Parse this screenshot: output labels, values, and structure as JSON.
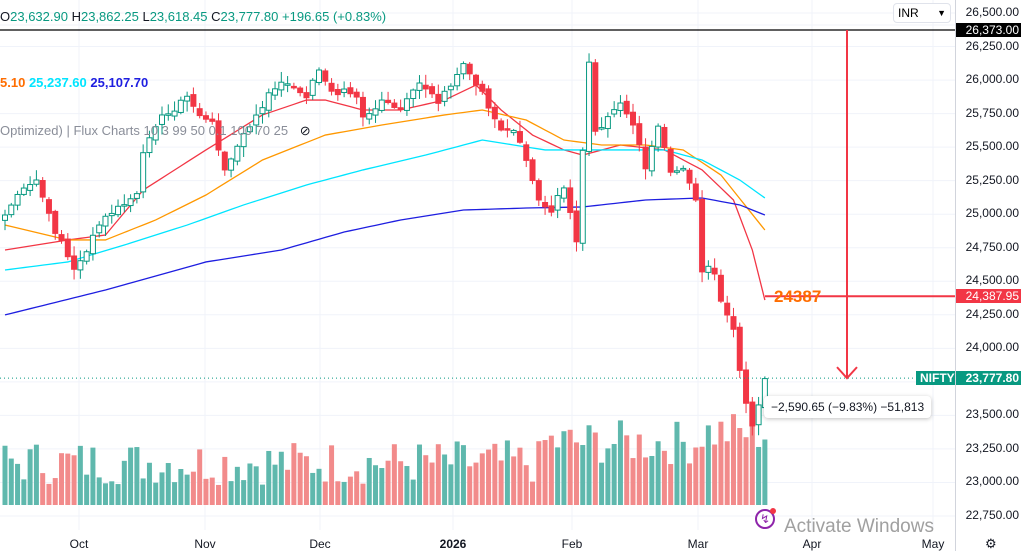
{
  "header": {
    "open_label": "O",
    "open": "23,632.90",
    "high_label": "H",
    "high": "23,862.25",
    "low_label": "L",
    "low": "23,618.45",
    "close_label": "C",
    "close": "23,777.80",
    "change": "+196.65 (+0.83%)"
  },
  "ma_legend": [
    {
      "value": "5.10",
      "color": "#ff6d00"
    },
    {
      "value": "25,237.60",
      "color": "#00e5ff"
    },
    {
      "value": "25,107.70",
      "color": "#1e1ee0"
    }
  ],
  "indicator_legend": "Optimized) | Flux Charts 10 3 99 50 0.1 100 70 25",
  "currency": {
    "label": "INR",
    "icon": "chevron-down-icon"
  },
  "price_axis": {
    "ticks": [
      "26,500.00",
      "26,250.00",
      "26,000.00",
      "25,750.00",
      "25,500.00",
      "25,250.00",
      "25,000.00",
      "24,750.00",
      "24,500.00",
      "24,250.00",
      "24,000.00",
      "23,500.00",
      "23,250.00",
      "23,000.00",
      "22,750.00"
    ],
    "high_tag": "26,373.00",
    "target_tag": "24,387.95",
    "last_tag": "23,777.80",
    "symbol": "NIFTY"
  },
  "time_axis": [
    "Oct",
    "Nov",
    "Dec",
    "2026",
    "Feb",
    "Mar",
    "Apr",
    "May"
  ],
  "annotations": {
    "target_label": "24387",
    "measure": "−2,590.65 (−9.83%) −51,813"
  },
  "watermark": "Activate Windows",
  "colors": {
    "up": "#089981",
    "down": "#f23645",
    "vol_up": "#5fb8ad",
    "vol_down": "#f28b8b"
  },
  "chart_data": {
    "type": "candlestick",
    "symbol": "NIFTY",
    "ylim": [
      22700,
      26560
    ],
    "bars": 122,
    "close_keypoints": [
      [
        0,
        24994
      ],
      [
        3,
        25218
      ],
      [
        5,
        25255
      ],
      [
        8,
        24882
      ],
      [
        11,
        24584
      ],
      [
        13,
        24733
      ],
      [
        15,
        24919
      ],
      [
        17,
        25031
      ],
      [
        21,
        25143
      ],
      [
        22,
        25479
      ],
      [
        25,
        25740
      ],
      [
        29,
        25851
      ],
      [
        33,
        25665
      ],
      [
        35,
        25330
      ],
      [
        38,
        25590
      ],
      [
        41,
        25814
      ],
      [
        44,
        26000
      ],
      [
        48,
        25889
      ],
      [
        50,
        26075
      ],
      [
        52,
        25926
      ],
      [
        56,
        25889
      ],
      [
        57,
        25702
      ],
      [
        60,
        25851
      ],
      [
        63,
        25777
      ],
      [
        66,
        26000
      ],
      [
        69,
        25851
      ],
      [
        73,
        26112
      ],
      [
        76,
        25889
      ],
      [
        79,
        25628
      ],
      [
        81,
        25628
      ],
      [
        83,
        25404
      ],
      [
        85,
        25106
      ],
      [
        87,
        25031
      ],
      [
        89,
        25218
      ],
      [
        91,
        24808
      ],
      [
        93,
        26112
      ],
      [
        94,
        25590
      ],
      [
        96,
        25702
      ],
      [
        98,
        25814
      ],
      [
        100,
        25665
      ],
      [
        102,
        25367
      ],
      [
        104,
        25665
      ],
      [
        106,
        25330
      ],
      [
        108,
        25330
      ],
      [
        110,
        25106
      ],
      [
        111,
        24584
      ],
      [
        113,
        24584
      ],
      [
        114,
        24360
      ],
      [
        116,
        24137
      ],
      [
        117,
        23839
      ],
      [
        118,
        23615
      ],
      [
        119,
        23392
      ],
      [
        120,
        23578
      ],
      [
        121,
        23777
      ]
    ],
    "moving_averages": [
      {
        "name": "MA short",
        "color": "#f23645",
        "points": [
          [
            0,
            24733
          ],
          [
            10,
            24808
          ],
          [
            16,
            24845
          ],
          [
            22,
            25180
          ],
          [
            32,
            25479
          ],
          [
            41,
            25740
          ],
          [
            48,
            25851
          ],
          [
            51,
            25851
          ],
          [
            57,
            25777
          ],
          [
            63,
            25777
          ],
          [
            70,
            25851
          ],
          [
            75,
            25963
          ],
          [
            79,
            25777
          ],
          [
            84,
            25590
          ],
          [
            89,
            25479
          ],
          [
            92,
            25441
          ],
          [
            98,
            25516
          ],
          [
            105,
            25479
          ],
          [
            111,
            25330
          ],
          [
            116,
            25106
          ],
          [
            119,
            24733
          ],
          [
            121,
            24360
          ]
        ]
      },
      {
        "name": "MA mid",
        "color": "#ff9800",
        "points": [
          [
            0,
            24919
          ],
          [
            10,
            24808
          ],
          [
            16,
            24808
          ],
          [
            24,
            24957
          ],
          [
            32,
            25143
          ],
          [
            41,
            25404
          ],
          [
            51,
            25590
          ],
          [
            60,
            25665
          ],
          [
            70,
            25740
          ],
          [
            76,
            25777
          ],
          [
            83,
            25702
          ],
          [
            89,
            25553
          ],
          [
            95,
            25516
          ],
          [
            102,
            25516
          ],
          [
            108,
            25479
          ],
          [
            114,
            25292
          ],
          [
            121,
            24882
          ]
        ]
      },
      {
        "name": "MA cyan",
        "color": "#00e5ff",
        "points": [
          [
            0,
            24584
          ],
          [
            10,
            24644
          ],
          [
            19,
            24770
          ],
          [
            29,
            24919
          ],
          [
            38,
            25069
          ],
          [
            48,
            25218
          ],
          [
            57,
            25330
          ],
          [
            67,
            25441
          ],
          [
            76,
            25553
          ],
          [
            86,
            25479
          ],
          [
            95,
            25479
          ],
          [
            105,
            25479
          ],
          [
            111,
            25404
          ],
          [
            117,
            25255
          ],
          [
            121,
            25121
          ]
        ]
      },
      {
        "name": "MA 200",
        "color": "#1e1ee0",
        "points": [
          [
            0,
            24249
          ],
          [
            16,
            24435
          ],
          [
            32,
            24644
          ],
          [
            44,
            24733
          ],
          [
            54,
            24867
          ],
          [
            63,
            24957
          ],
          [
            73,
            25031
          ],
          [
            83,
            25046
          ],
          [
            92,
            25054
          ],
          [
            102,
            25106
          ],
          [
            111,
            25121
          ],
          [
            117,
            25069
          ],
          [
            121,
            24994
          ]
        ]
      }
    ],
    "levels": {
      "high": 26373.0,
      "target": 24387.95,
      "last": 23777.8
    }
  }
}
